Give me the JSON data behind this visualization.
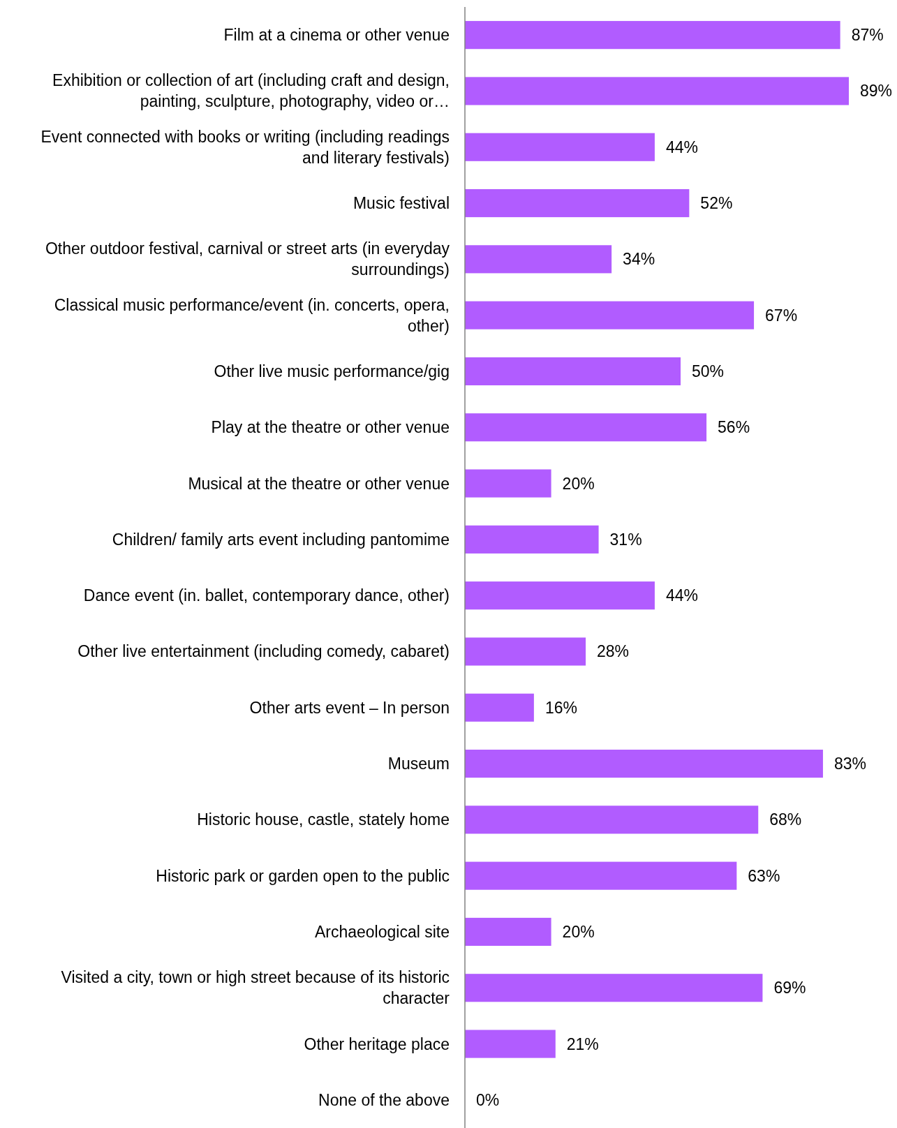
{
  "chart_data": {
    "type": "bar",
    "orientation": "horizontal",
    "categories": [
      "Film at a cinema or other venue",
      "Exhibition or collection of art (including craft and design, painting, sculpture, photography, video or…",
      "Event connected with books or writing (including readings and literary festivals)",
      "Music festival",
      "Other outdoor festival, carnival or street arts (in everyday surroundings)",
      "Classical music performance/event (in. concerts, opera, other)",
      "Other live music performance/gig",
      "Play at the theatre or other venue",
      "Musical at the theatre or other venue",
      "Children/ family arts event including pantomime",
      "Dance event (in. ballet, contemporary dance, other)",
      "Other live entertainment (including comedy, cabaret)",
      "Other arts event – In person",
      "Museum",
      "Historic house, castle, stately home",
      "Historic park or garden open to the public",
      "Archaeological site",
      "Visited a city, town or high street because of its historic character",
      "Other heritage place",
      "None of the above"
    ],
    "values": [
      87,
      89,
      44,
      52,
      34,
      67,
      50,
      56,
      20,
      31,
      44,
      28,
      16,
      83,
      68,
      63,
      20,
      69,
      21,
      0
    ],
    "value_labels": [
      "87%",
      "89%",
      "44%",
      "52%",
      "34%",
      "67%",
      "50%",
      "56%",
      "20%",
      "31%",
      "44%",
      "28%",
      "16%",
      "83%",
      "68%",
      "63%",
      "20%",
      "69%",
      "21%",
      "0%"
    ],
    "color": "#b15cff"
  }
}
